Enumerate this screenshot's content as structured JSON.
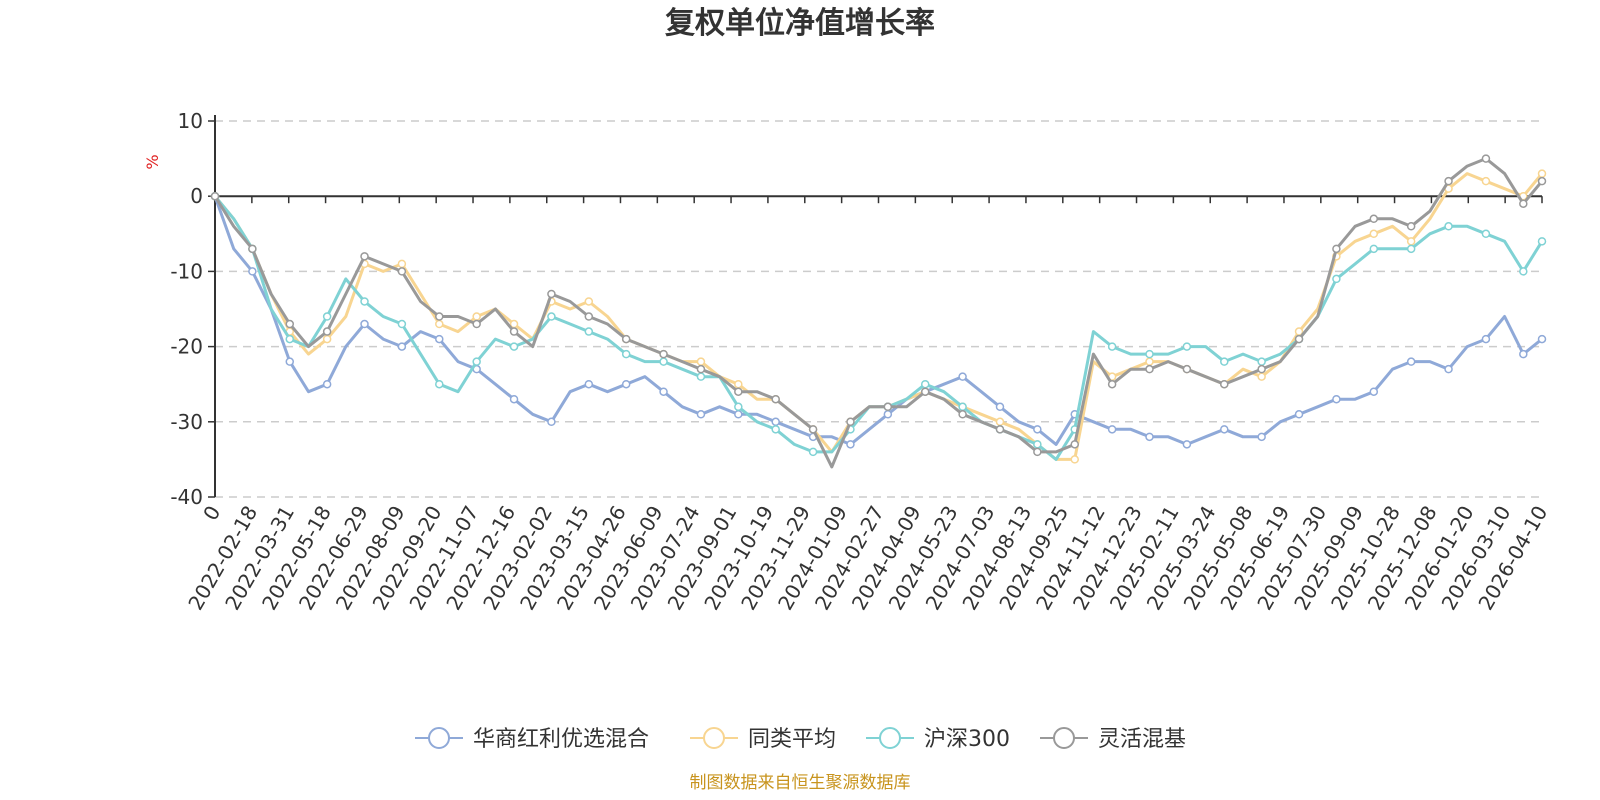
{
  "chart_data": {
    "type": "line",
    "title": "复权单位净值增长率",
    "ylabel": "%",
    "ylim": [
      -40,
      10
    ],
    "yticks": [
      10,
      0,
      -10,
      -20,
      -30,
      -40
    ],
    "grid": true,
    "legend_placement": "bottom",
    "x_tick_labels": [
      "0",
      "2022-02-18",
      "2022-03-31",
      "2022-05-18",
      "2022-06-29",
      "2022-08-09",
      "2022-09-20",
      "2022-11-07",
      "2022-12-16",
      "2023-02-02",
      "2023-03-15",
      "2023-04-26",
      "2023-06-09",
      "2023-07-24",
      "2023-09-01",
      "2023-10-19",
      "2023-11-29",
      "2024-01-09",
      "2024-02-27",
      "2024-04-09",
      "2024-05-23",
      "2024-07-03",
      "2024-08-13",
      "2024-09-25",
      "2024-11-12",
      "2024-12-23",
      "2025-02-11",
      "2025-03-24",
      "2025-05-08",
      "2025-06-19",
      "2025-07-30",
      "2025-09-09",
      "2025-10-28",
      "2025-12-08",
      "2026-01-20",
      "2026-03-10",
      "2026-04-10"
    ],
    "series": [
      {
        "name": "华商红利优选混合",
        "color": "#8fa9d8",
        "values": [
          0,
          -7,
          -10,
          -15,
          -22,
          -26,
          -25,
          -20,
          -17,
          -19,
          -20,
          -18,
          -19,
          -22,
          -23,
          -25,
          -27,
          -29,
          -30,
          -26,
          -25,
          -26,
          -25,
          -24,
          -26,
          -28,
          -29,
          -28,
          -29,
          -29,
          -30,
          -31,
          -32,
          -32,
          -33,
          -31,
          -29,
          -27,
          -26,
          -25,
          -24,
          -26,
          -28,
          -30,
          -31,
          -33,
          -29,
          -30,
          -31,
          -31,
          -32,
          -32,
          -33,
          -32,
          -31,
          -32,
          -32,
          -30,
          -29,
          -28,
          -27,
          -27,
          -26,
          -23,
          -22,
          -22,
          -23,
          -20,
          -19,
          -16,
          -21,
          -19
        ]
      },
      {
        "name": "同类平均",
        "color": "#f8d591",
        "values": [
          0,
          -3,
          -7,
          -13,
          -18,
          -21,
          -19,
          -16,
          -9,
          -10,
          -9,
          -13,
          -17,
          -18,
          -16,
          -15,
          -17,
          -19,
          -14,
          -15,
          -14,
          -16,
          -19,
          -20,
          -21,
          -22,
          -22,
          -24,
          -25,
          -27,
          -27,
          -29,
          -31,
          -34,
          -30,
          -28,
          -28,
          -27,
          -26,
          -27,
          -28,
          -29,
          -30,
          -31,
          -33,
          -35,
          -35,
          -22,
          -24,
          -23,
          -22,
          -22,
          -23,
          -24,
          -25,
          -23,
          -24,
          -22,
          -18,
          -15,
          -8,
          -6,
          -5,
          -4,
          -6,
          -3,
          1,
          3,
          2,
          1,
          0,
          3
        ]
      },
      {
        "name": "沪深300",
        "color": "#7fd2d4",
        "values": [
          0,
          -3,
          -7,
          -15,
          -19,
          -20,
          -16,
          -11,
          -14,
          -16,
          -17,
          -21,
          -25,
          -26,
          -22,
          -19,
          -20,
          -19,
          -16,
          -17,
          -18,
          -19,
          -21,
          -22,
          -22,
          -23,
          -24,
          -24,
          -28,
          -30,
          -31,
          -33,
          -34,
          -34,
          -31,
          -28,
          -28,
          -27,
          -25,
          -26,
          -28,
          -30,
          -31,
          -32,
          -33,
          -35,
          -31,
          -18,
          -20,
          -21,
          -21,
          -21,
          -20,
          -20,
          -22,
          -21,
          -22,
          -21,
          -19,
          -16,
          -11,
          -9,
          -7,
          -7,
          -7,
          -5,
          -4,
          -4,
          -5,
          -6,
          -10,
          -6
        ]
      },
      {
        "name": "灵活混基",
        "color": "#999999",
        "values": [
          0,
          -4,
          -7,
          -13,
          -17,
          -20,
          -18,
          -13,
          -8,
          -9,
          -10,
          -14,
          -16,
          -16,
          -17,
          -15,
          -18,
          -20,
          -13,
          -14,
          -16,
          -17,
          -19,
          -20,
          -21,
          -22,
          -23,
          -24,
          -26,
          -26,
          -27,
          -29,
          -31,
          -36,
          -30,
          -28,
          -28,
          -28,
          -26,
          -27,
          -29,
          -30,
          -31,
          -32,
          -34,
          -34,
          -33,
          -21,
          -25,
          -23,
          -23,
          -22,
          -23,
          -24,
          -25,
          -24,
          -23,
          -22,
          -19,
          -16,
          -7,
          -4,
          -3,
          -3,
          -4,
          -2,
          2,
          4,
          5,
          3,
          -1,
          2
        ]
      }
    ]
  },
  "footer": "制图数据来自恒生聚源数据库"
}
